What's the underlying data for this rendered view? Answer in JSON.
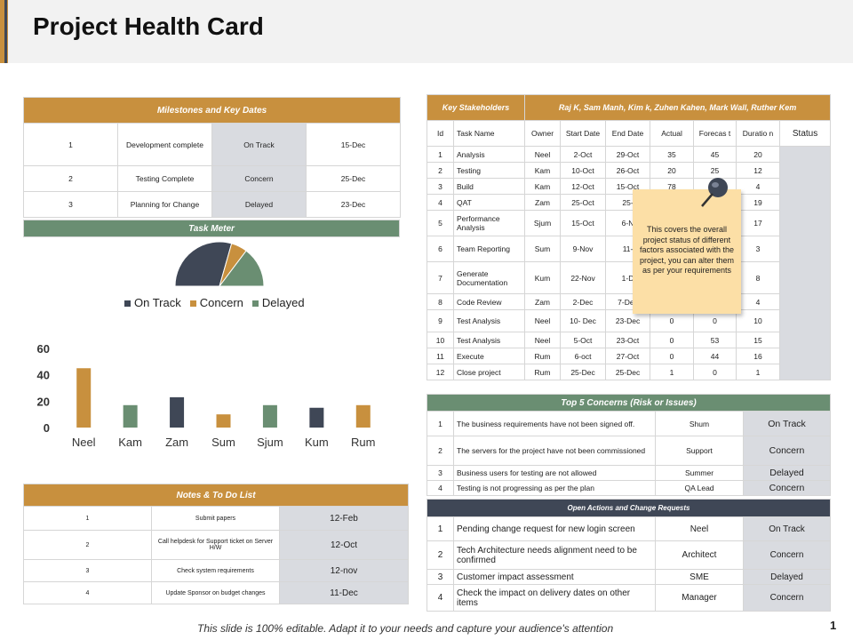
{
  "title": "Project Health Card",
  "milestones": {
    "header": "Milestones  and Key Dates",
    "rows": [
      {
        "id": "1",
        "name": "Development complete",
        "status": "On Track",
        "date": "15-Dec"
      },
      {
        "id": "2",
        "name": "Testing Complete",
        "status": "Concern",
        "date": "25-Dec"
      },
      {
        "id": "3",
        "name": "Planning  for Change",
        "status": "Delayed",
        "date": "23-Dec"
      }
    ]
  },
  "task_meter": {
    "header": "Task Meter",
    "legend": [
      "On Track",
      "Concern",
      "Delayed"
    ],
    "colors": {
      "on_track": "#3f4756",
      "concern": "#c8903e",
      "delayed": "#6a8e72"
    }
  },
  "chart_data": [
    {
      "type": "pie",
      "categories": [
        "On Track",
        "Concern",
        "Delayed"
      ],
      "values": [
        50,
        10,
        25
      ]
    },
    {
      "type": "bar",
      "categories": [
        "Neel",
        "Kam",
        "Zam",
        "Sum",
        "Sjum",
        "Kum",
        "Rum"
      ],
      "values": [
        45,
        17,
        23,
        10,
        17,
        15,
        17
      ],
      "bar_colors": [
        "#c8903e",
        "#6a8e72",
        "#3f4756",
        "#c8903e",
        "#6a8e72",
        "#3f4756",
        "#c8903e"
      ],
      "yticks": [
        "0",
        "20",
        "40",
        "60"
      ],
      "ylim": [
        0,
        60
      ]
    }
  ],
  "notes": {
    "header": "Notes & To Do List",
    "rows": [
      {
        "id": "1",
        "task": "Submit papers",
        "date": "12-Feb"
      },
      {
        "id": "2",
        "task": "Call helpdesk  for Support  ticket on Server H/W",
        "date": "12-Oct"
      },
      {
        "id": "3",
        "task": "Check system requirements",
        "date": "12-nov"
      },
      {
        "id": "4",
        "task": "Update Sponsor on budget  changes",
        "date": "11-Dec"
      }
    ]
  },
  "stakeholders": {
    "label": "Key Stakeholders",
    "names": "Raj K, Sam Manh,  Kim k, Zuhen Kahen, Mark Wall, Ruther Kem"
  },
  "tasks": {
    "columns": [
      "Id",
      "Task Name",
      "Owner",
      "Start Date",
      "End Date",
      "Actual",
      "Forecast",
      "Duration",
      "Status"
    ],
    "columns_display": [
      "Id",
      "Task Name",
      "Owner",
      "Start Date",
      "End Date",
      "Actual",
      "Forecas t",
      "Duratio n",
      "Status"
    ],
    "rows": [
      {
        "id": "1",
        "name": "Analysis",
        "owner": "Neel",
        "start": "2-Oct",
        "end": "29-Oct",
        "actual": "35",
        "forecast": "45",
        "duration": "20"
      },
      {
        "id": "2",
        "name": "Testing",
        "owner": "Kam",
        "start": "10-Oct",
        "end": "26-Oct",
        "actual": "20",
        "forecast": "25",
        "duration": "12"
      },
      {
        "id": "3",
        "name": "Build",
        "owner": "Kam",
        "start": "12-Oct",
        "end": "15-Oct",
        "actual": "78",
        "forecast": "",
        "duration": "4"
      },
      {
        "id": "4",
        "name": "QAT",
        "owner": "Zam",
        "start": "25-Oct",
        "end": "25-",
        "actual": "",
        "forecast": "",
        "duration": "19"
      },
      {
        "id": "5",
        "name": "Performance Analysis",
        "owner": "Sjum",
        "start": "15-Oct",
        "end": "6-N",
        "actual": "",
        "forecast": "",
        "duration": "17"
      },
      {
        "id": "6",
        "name": "Team Reporting",
        "owner": "Sum",
        "start": "9-Nov",
        "end": "11-",
        "actual": "",
        "forecast": "",
        "duration": "3"
      },
      {
        "id": "7",
        "name": "Generate Documentation",
        "owner": "Kum",
        "start": "22-Nov",
        "end": "1-D",
        "actual": "",
        "forecast": "",
        "duration": "8"
      },
      {
        "id": "8",
        "name": "Code Review",
        "owner": "Zam",
        "start": "2-Dec",
        "end": "7-Dec",
        "actual": "0",
        "forecast": "0",
        "duration": "4"
      },
      {
        "id": "9",
        "name": "Test Analysis",
        "owner": "Neel",
        "start": "10- Dec",
        "end": "23-Dec",
        "actual": "0",
        "forecast": "0",
        "duration": "10"
      },
      {
        "id": "10",
        "name": "Test Analysis",
        "owner": "Neel",
        "start": "5-Oct",
        "end": "23-Oct",
        "actual": "0",
        "forecast": "53",
        "duration": "15"
      },
      {
        "id": "11",
        "name": "Execute",
        "owner": "Rum",
        "start": "6-oct",
        "end": "27-Oct",
        "actual": "0",
        "forecast": "44",
        "duration": "16"
      },
      {
        "id": "12",
        "name": "Close project",
        "owner": "Rum",
        "start": "25-Dec",
        "end": "25-Dec",
        "actual": "1",
        "forecast": "0",
        "duration": "1"
      }
    ]
  },
  "sticky_note": "This covers the overall project status of different factors associated with the project, you can alter them as per your requirements",
  "concerns": {
    "header": "Top 5 Concerns (Risk or Issues)",
    "rows": [
      {
        "id": "1",
        "text": "The business requirements have not been signed off.",
        "owner": "Shum",
        "status": "On Track"
      },
      {
        "id": "2",
        "text": "The servers for the project have not been commissioned",
        "owner": "Support",
        "status": "Concern"
      },
      {
        "id": "3",
        "text": "Business users for testing are not allowed",
        "owner": "Summer",
        "status": "Delayed"
      },
      {
        "id": "4",
        "text": "Testing is not progressing as per the plan",
        "owner": "QA Lead",
        "status": "Concern"
      }
    ]
  },
  "actions": {
    "header": "Open Actions and Change Requests",
    "rows": [
      {
        "id": "1",
        "text": "Pending change request for new login screen",
        "owner": "Neel",
        "status": "On Track"
      },
      {
        "id": "2",
        "text": "Tech Architecture needs alignment need to be confirmed",
        "owner": "Architect",
        "status": "Concern"
      },
      {
        "id": "3",
        "text": "Customer impact assessment",
        "owner": "SME",
        "status": "Delayed"
      },
      {
        "id": "4",
        "text": "Check the impact on delivery dates on other items",
        "owner": "Manager",
        "status": "Concern"
      }
    ]
  },
  "footer": "This slide is 100% editable. Adapt it to your needs and capture your audience's attention",
  "page_number": "1"
}
